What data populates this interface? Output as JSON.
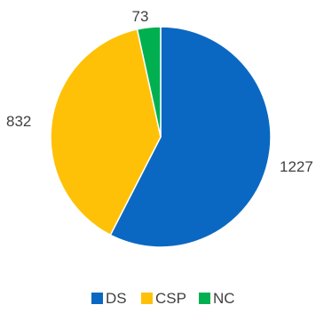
{
  "chart_data": {
    "type": "pie",
    "title": "",
    "labels": [
      "DS",
      "CSP",
      "NC"
    ],
    "values": [
      1227,
      832,
      73
    ],
    "data_labels": [
      "1227",
      "832",
      "73"
    ],
    "colors": [
      "#0a68c2",
      "#ffc107",
      "#00b050"
    ],
    "start_angle": "12 o'clock",
    "direction": "clockwise",
    "legend": {
      "position": "bottom",
      "entries": [
        "DS",
        "CSP",
        "NC"
      ]
    }
  }
}
